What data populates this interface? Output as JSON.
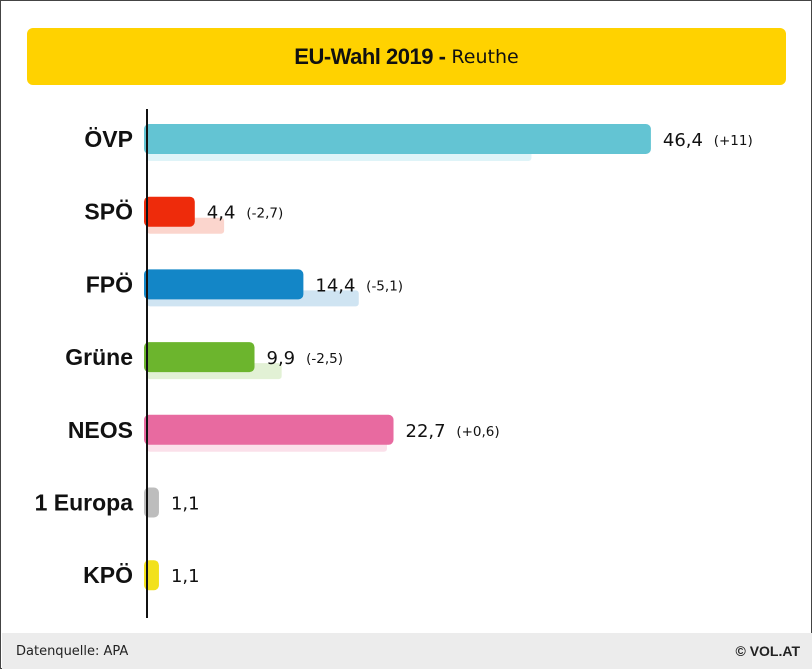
{
  "header": {
    "title_main": "EU-Wahl 2019 -",
    "title_sub": "Reuthe"
  },
  "chart_data": {
    "type": "bar",
    "orientation": "horizontal",
    "categories": [
      "ÖVP",
      "SPÖ",
      "FPÖ",
      "Grüne",
      "NEOS",
      "1 Europa",
      "KPÖ"
    ],
    "series": [
      {
        "values": [
          46.4,
          4.4,
          14.4,
          9.9,
          22.7,
          1.1,
          1.1
        ]
      },
      {
        "values": [
          35.4,
          7.1,
          19.5,
          12.4,
          22.1,
          null,
          null
        ]
      }
    ],
    "value_labels": [
      "46,4",
      "4,4",
      "14,4",
      "9,9",
      "22,7",
      "1,1",
      "1,1"
    ],
    "change_labels": [
      "(+11)",
      "(-2,7)",
      "(-5,1)",
      "(-2,5)",
      "(+0,6)",
      "",
      ""
    ],
    "colors": [
      "#63c4d3",
      "#ee2b0b",
      "#1386c7",
      "#6cb52d",
      "#e86aa0",
      "#bdbdbd",
      "#f2e11c"
    ],
    "previous_colors": [
      "#dff4f8",
      "#fbd5cd",
      "#cfe4f2",
      "#e2f1d5",
      "#fbe0ea",
      "#eeeeee",
      "#fcf8cc"
    ],
    "xlim": [
      0,
      50
    ],
    "grid": false,
    "legend": "none"
  },
  "footer": {
    "source": "Datenquelle: APA",
    "brand": "© VOL.AT"
  }
}
